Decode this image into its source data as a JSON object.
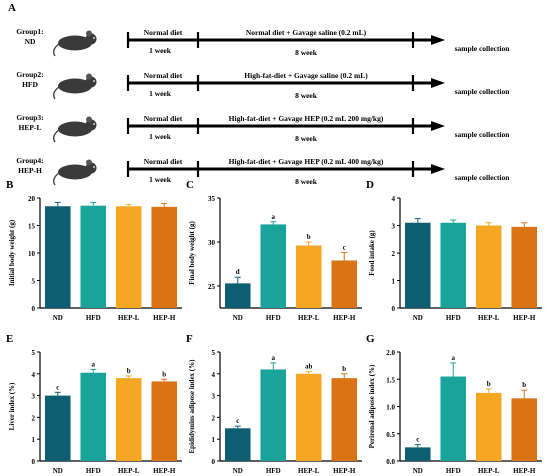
{
  "figure": {
    "panel_label_A": "A",
    "groups": [
      {
        "label1": "Group1:",
        "label2": "ND",
        "first_seg": "Normal diet",
        "second_seg": "Normal diet + Gavage saline (0.2 mL)",
        "week1": "1 week",
        "week8": "8 week",
        "end_label": "sample collection"
      },
      {
        "label1": "Group2:",
        "label2": "HFD",
        "first_seg": "Normal diet",
        "second_seg": "High-fat-diet + Gavage saline (0.2 mL)",
        "week1": "1 week",
        "week8": "8 week",
        "end_label": "sample collection"
      },
      {
        "label1": "Group3:",
        "label2": "HEP-L",
        "first_seg": "Normal diet",
        "second_seg": "High-fat-diet + Gavage HEP (0.2 mL 200 mg/kg)",
        "week1": "1 week",
        "week8": "8 week",
        "end_label": "sample collection"
      },
      {
        "label1": "Group4:",
        "label2": "HEP-H",
        "first_seg": "Normal diet",
        "second_seg": "High-fat-diet + Gavage HEP (0.2 mL 400 mg/kg)",
        "week1": "1 week",
        "week8": "8 week",
        "end_label": "sample collection"
      }
    ],
    "colors": {
      "ND": "#0e5e72",
      "HFD": "#1aa39b",
      "HEP-L": "#f5a623",
      "HEP-H": "#d97313",
      "mouse": "#3a3a3a"
    }
  },
  "chart_data": [
    {
      "panel": "B",
      "type": "bar",
      "categories": [
        "ND",
        "HFD",
        "HEP-L",
        "HEP-H"
      ],
      "values": [
        18.5,
        18.6,
        18.5,
        18.4
      ],
      "errors": [
        0.7,
        0.6,
        0.3,
        0.6
      ],
      "letters": [
        "",
        "",
        "",
        ""
      ],
      "ylabel": "Initial body weight (g)",
      "ylim": [
        0,
        20
      ],
      "yticks": [
        "0",
        "5",
        "10",
        "15",
        "20"
      ]
    },
    {
      "panel": "C",
      "type": "bar",
      "categories": [
        "ND",
        "HFD",
        "HEP-L",
        "HEP-H"
      ],
      "values": [
        25.3,
        32.0,
        29.6,
        27.9
      ],
      "errors": [
        0.7,
        0.3,
        0.4,
        0.9
      ],
      "letters": [
        "d",
        "a",
        "b",
        "c"
      ],
      "ylabel": "Final body weight (g)",
      "ylim": [
        22.5,
        35
      ],
      "yticks": [
        "25",
        "30",
        "35"
      ]
    },
    {
      "panel": "D",
      "type": "bar",
      "categories": [
        "ND",
        "HFD",
        "HEP-L",
        "HEP-H"
      ],
      "values": [
        3.1,
        3.1,
        3.0,
        2.95
      ],
      "errors": [
        0.15,
        0.1,
        0.1,
        0.15
      ],
      "letters": [
        "",
        "",
        "",
        ""
      ],
      "ylabel": "Food intake (g)",
      "ylim": [
        0,
        4
      ],
      "yticks": [
        "0",
        "1",
        "2",
        "3",
        "4"
      ]
    },
    {
      "panel": "E",
      "type": "bar",
      "categories": [
        "ND",
        "HFD",
        "HEP-L",
        "HEP-H"
      ],
      "values": [
        3.0,
        4.05,
        3.8,
        3.65
      ],
      "errors": [
        0.15,
        0.15,
        0.1,
        0.1
      ],
      "letters": [
        "c",
        "a",
        "b",
        "b"
      ],
      "ylabel": "Liver index (%)",
      "ylim": [
        0,
        5
      ],
      "yticks": [
        "0",
        "1",
        "2",
        "3",
        "4",
        "5"
      ]
    },
    {
      "panel": "F",
      "type": "bar",
      "categories": [
        "ND",
        "HFD",
        "HEP-L",
        "HEP-H"
      ],
      "values": [
        1.5,
        4.2,
        4.0,
        3.8
      ],
      "errors": [
        0.1,
        0.3,
        0.1,
        0.2
      ],
      "letters": [
        "c",
        "a",
        "ab",
        "b"
      ],
      "ylabel": "Epididymins adipose index (%)",
      "ylim": [
        0,
        5
      ],
      "yticks": [
        "0",
        "1",
        "2",
        "3",
        "4",
        "5"
      ]
    },
    {
      "panel": "G",
      "type": "bar",
      "categories": [
        "ND",
        "HFD",
        "HEP-L",
        "HEP-H"
      ],
      "values": [
        0.25,
        1.55,
        1.25,
        1.15
      ],
      "errors": [
        0.05,
        0.25,
        0.07,
        0.15
      ],
      "letters": [
        "c",
        "a",
        "b",
        "b"
      ],
      "ylabel": "Perirenal adipose index (%)",
      "ylim": [
        0,
        2
      ],
      "yticks": [
        "0.0",
        "0.5",
        "1.0",
        "1.5",
        "2.0"
      ]
    }
  ]
}
